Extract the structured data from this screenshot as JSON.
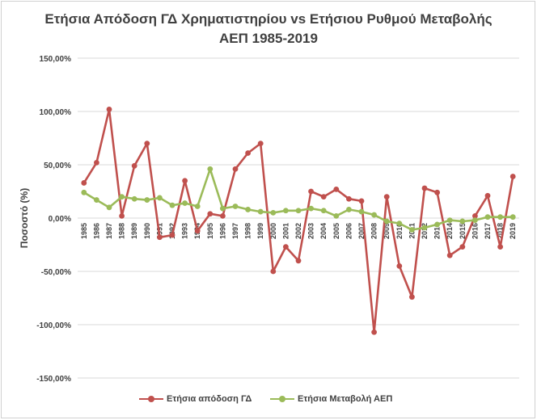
{
  "title_line1": "Ετήσια Απόδοση ΓΔ Χρηματιστηρίου vs Ετήσιου Ρυθμού Μεταβολής",
  "title_line2": "ΑΕΠ 1985-2019",
  "colors": {
    "series1": "#c0504d",
    "series2": "#9bbb59",
    "grid": "#d9d9d9",
    "text": "#404040"
  },
  "chart_data": {
    "type": "line",
    "ylabel": "Ποσοστό (%)",
    "ylim": [
      -150,
      150
    ],
    "yticks": [
      "150,00%",
      "100,00%",
      "50,00%",
      "0,00%",
      "-50,00%",
      "-100,00%",
      "-150,00%"
    ],
    "ytick_values": [
      150,
      100,
      50,
      0,
      -50,
      -100,
      -150
    ],
    "grid": true,
    "legend_position": "bottom",
    "categories": [
      "1985",
      "1986",
      "1987",
      "1988",
      "1989",
      "1990",
      "1991",
      "1992",
      "1993",
      "1994",
      "1995",
      "1996",
      "1997",
      "1998",
      "1999",
      "2000",
      "2001",
      "2002",
      "2003",
      "2004",
      "2005",
      "2006",
      "2007",
      "2008",
      "2009",
      "2010",
      "2011",
      "2012",
      "2013",
      "2014",
      "2015",
      "2016",
      "2017",
      "2018",
      "2019"
    ],
    "series": [
      {
        "name": "Ετήσια απόδοση ΓΔ",
        "values": [
          33,
          52,
          102,
          2,
          49,
          70,
          -18,
          -16,
          35,
          -12,
          4,
          2,
          46,
          61,
          70,
          -50,
          -27,
          -40,
          25,
          20,
          27,
          18,
          16,
          -107,
          20,
          -45,
          -74,
          28,
          24,
          -35,
          -27,
          2,
          21,
          -27,
          39
        ]
      },
      {
        "name": "Ετήσια Μεταβολή ΑΕΠ",
        "values": [
          24,
          17,
          10,
          20,
          18,
          17,
          19,
          12,
          14,
          11,
          46,
          9,
          11,
          8,
          6,
          5,
          7,
          7,
          9,
          7,
          2,
          8,
          6,
          3,
          -3,
          -5,
          -11,
          -9,
          -6,
          -2,
          -3,
          -2,
          1,
          1,
          1
        ]
      }
    ]
  }
}
